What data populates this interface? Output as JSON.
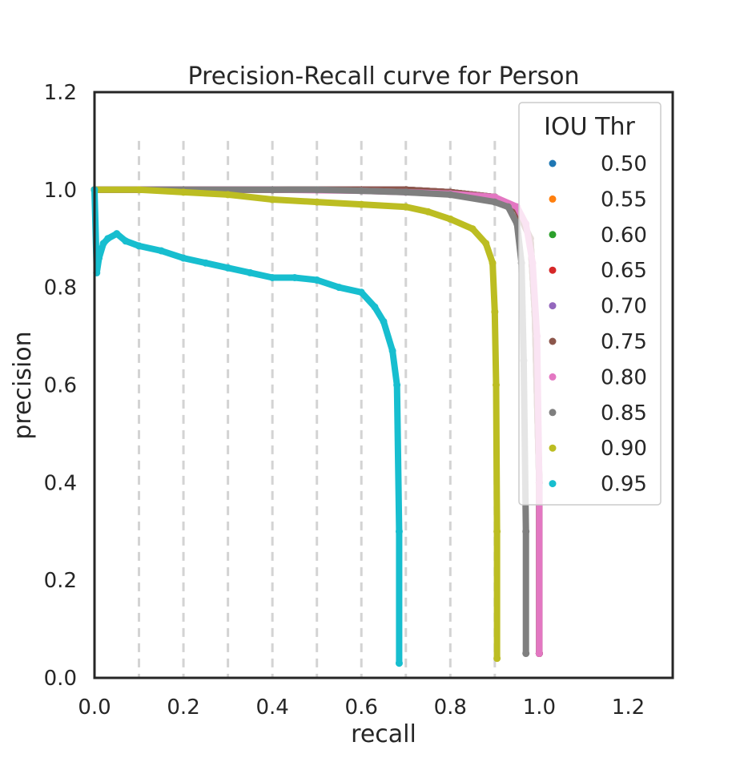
{
  "chart_data": {
    "type": "scatter",
    "title": "Precision-Recall curve for Person",
    "xlabel": "recall",
    "ylabel": "precision",
    "xlim": [
      0.0,
      1.3
    ],
    "ylim": [
      0.0,
      1.2
    ],
    "xticks": [
      "0.0",
      "0.2",
      "0.4",
      "0.6",
      "0.8",
      "1.0",
      "1.2"
    ],
    "yticks": [
      "0.0",
      "0.2",
      "0.4",
      "0.6",
      "0.8",
      "1.0",
      "1.2"
    ],
    "vlines": [
      0.1,
      0.2,
      0.3,
      0.4,
      0.5,
      0.6,
      0.7,
      0.8,
      0.9
    ],
    "grid": false,
    "legend": {
      "title": "IOU Thr",
      "placement": "top-right"
    },
    "series": [
      {
        "name": "0.50",
        "color": "#1f77b4",
        "x": [
          0.0,
          0.2,
          0.4,
          0.6,
          0.7,
          0.8,
          0.9,
          0.95,
          0.98,
          0.99,
          1.0,
          1.0
        ],
        "y": [
          1.0,
          1.0,
          1.0,
          1.0,
          1.0,
          0.995,
          0.985,
          0.96,
          0.9,
          0.75,
          0.4,
          0.05
        ]
      },
      {
        "name": "0.55",
        "color": "#ff7f0e",
        "x": [
          0.0,
          0.2,
          0.4,
          0.6,
          0.7,
          0.8,
          0.9,
          0.95,
          0.98,
          0.99,
          1.0,
          1.0
        ],
        "y": [
          1.0,
          1.0,
          1.0,
          1.0,
          1.0,
          0.995,
          0.985,
          0.96,
          0.9,
          0.75,
          0.4,
          0.05
        ]
      },
      {
        "name": "0.60",
        "color": "#2ca02c",
        "x": [
          0.0,
          0.2,
          0.4,
          0.6,
          0.7,
          0.8,
          0.9,
          0.95,
          0.98,
          0.99,
          1.0,
          1.0
        ],
        "y": [
          1.0,
          1.0,
          1.0,
          1.0,
          1.0,
          0.995,
          0.985,
          0.96,
          0.9,
          0.75,
          0.4,
          0.05
        ]
      },
      {
        "name": "0.65",
        "color": "#d62728",
        "x": [
          0.0,
          0.2,
          0.4,
          0.6,
          0.7,
          0.8,
          0.9,
          0.95,
          0.98,
          0.99,
          1.0,
          1.0
        ],
        "y": [
          1.0,
          1.0,
          1.0,
          1.0,
          1.0,
          0.995,
          0.985,
          0.96,
          0.9,
          0.75,
          0.4,
          0.05
        ]
      },
      {
        "name": "0.70",
        "color": "#9467bd",
        "x": [
          0.0,
          0.2,
          0.4,
          0.6,
          0.7,
          0.8,
          0.9,
          0.95,
          0.98,
          0.99,
          1.0,
          1.0
        ],
        "y": [
          1.0,
          1.0,
          1.0,
          1.0,
          1.0,
          0.995,
          0.985,
          0.96,
          0.9,
          0.75,
          0.4,
          0.05
        ]
      },
      {
        "name": "0.75",
        "color": "#8c564b",
        "x": [
          0.0,
          0.2,
          0.4,
          0.6,
          0.7,
          0.8,
          0.9,
          0.95,
          0.98,
          0.99,
          1.0,
          1.0
        ],
        "y": [
          1.0,
          1.0,
          1.0,
          1.0,
          1.0,
          0.995,
          0.985,
          0.96,
          0.9,
          0.75,
          0.4,
          0.05
        ]
      },
      {
        "name": "0.80",
        "color": "#e377c2",
        "x": [
          0.0,
          0.2,
          0.4,
          0.6,
          0.7,
          0.8,
          0.9,
          0.95,
          0.97,
          0.985,
          0.995,
          1.0,
          1.0
        ],
        "y": [
          1.0,
          1.0,
          1.0,
          0.998,
          0.995,
          0.992,
          0.985,
          0.965,
          0.93,
          0.85,
          0.7,
          0.4,
          0.05
        ]
      },
      {
        "name": "0.85",
        "color": "#7f7f7f",
        "x": [
          0.0,
          0.2,
          0.4,
          0.5,
          0.6,
          0.7,
          0.8,
          0.9,
          0.93,
          0.95,
          0.96,
          0.965,
          0.97,
          0.97
        ],
        "y": [
          1.0,
          1.0,
          1.0,
          1.0,
          0.998,
          0.995,
          0.99,
          0.975,
          0.965,
          0.93,
          0.85,
          0.65,
          0.3,
          0.05
        ]
      },
      {
        "name": "0.90",
        "color": "#bcbd22",
        "x": [
          0.0,
          0.1,
          0.2,
          0.3,
          0.4,
          0.5,
          0.6,
          0.7,
          0.75,
          0.8,
          0.85,
          0.88,
          0.895,
          0.9,
          0.903,
          0.905,
          0.905
        ],
        "y": [
          1.0,
          1.0,
          0.995,
          0.99,
          0.98,
          0.975,
          0.97,
          0.965,
          0.955,
          0.94,
          0.92,
          0.89,
          0.85,
          0.75,
          0.6,
          0.3,
          0.04
        ]
      },
      {
        "name": "0.95",
        "color": "#17becf",
        "x": [
          0.0,
          0.005,
          0.01,
          0.02,
          0.03,
          0.05,
          0.07,
          0.1,
          0.15,
          0.2,
          0.25,
          0.3,
          0.35,
          0.4,
          0.45,
          0.5,
          0.55,
          0.6,
          0.63,
          0.65,
          0.67,
          0.68,
          0.685,
          0.685
        ],
        "y": [
          1.0,
          0.83,
          0.86,
          0.89,
          0.9,
          0.91,
          0.895,
          0.885,
          0.875,
          0.86,
          0.85,
          0.84,
          0.83,
          0.82,
          0.82,
          0.815,
          0.8,
          0.79,
          0.76,
          0.73,
          0.67,
          0.6,
          0.3,
          0.03
        ]
      }
    ]
  }
}
